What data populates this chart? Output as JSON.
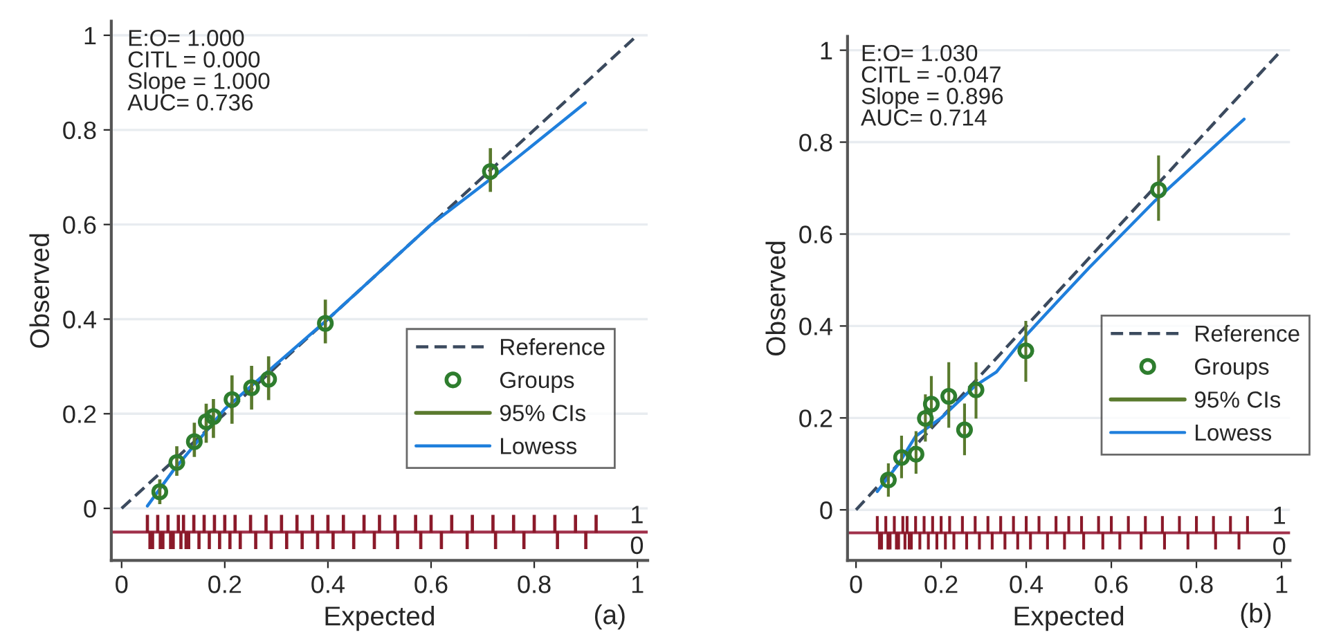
{
  "chart_data": [
    {
      "type": "scatter",
      "xlabel": "Expected",
      "ylabel": "Observed",
      "xlim": [
        -0.02,
        1.02
      ],
      "ylim": [
        -0.11,
        1.03
      ],
      "xticks": [
        0,
        0.2,
        0.4,
        0.6,
        0.8,
        1
      ],
      "yticks": [
        0,
        0.2,
        0.4,
        0.6,
        0.8,
        1
      ],
      "grid": "y",
      "legend": "lower right",
      "annotations": [
        "E:O= 1.000\nCITL = 0.000\nSlope = 1.000\nAUC= 0.736",
        "(a)",
        "1",
        "0"
      ],
      "ref_lines": [
        {
          "axis": "y",
          "value": -0.05,
          "color": "#a0304a"
        }
      ],
      "series": [
        {
          "name": "Reference",
          "type": "line",
          "line_style": "dashed",
          "color": "#3b4a5e",
          "x": [
            0,
            1
          ],
          "values": [
            0,
            1
          ]
        },
        {
          "name": "Groups",
          "marker": "circle",
          "color": "#2e7d2e",
          "x": [
            0.074,
            0.107,
            0.141,
            0.164,
            0.178,
            0.214,
            0.252,
            0.285,
            0.395,
            0.715
          ],
          "values": [
            0.035,
            0.097,
            0.141,
            0.183,
            0.194,
            0.23,
            0.255,
            0.273,
            0.391,
            0.712
          ]
        },
        {
          "name": "95% CIs",
          "type": "bar",
          "color": "#5a7a2e",
          "x": [
            0.074,
            0.107,
            0.141,
            0.164,
            0.178,
            0.214,
            0.252,
            0.285,
            0.395,
            0.715
          ],
          "base": [
            0.01,
            0.07,
            0.11,
            0.14,
            0.15,
            0.18,
            0.21,
            0.23,
            0.35,
            0.67
          ],
          "values": [
            0.05,
            0.06,
            0.07,
            0.08,
            0.08,
            0.1,
            0.09,
            0.09,
            0.09,
            0.09
          ]
        },
        {
          "name": "Lowess",
          "type": "line",
          "line_style": "solid",
          "color": "#1f7fdc",
          "x": [
            0.05,
            0.1,
            0.2,
            0.4,
            0.6,
            0.72,
            0.899
          ],
          "values": [
            0.005,
            0.08,
            0.21,
            0.4,
            0.6,
            0.7,
            0.857
          ]
        },
        {
          "type": "bar",
          "color": "#8b1a2a",
          "x": [
            0.05,
            0.055,
            0.06,
            0.07,
            0.075,
            0.08,
            0.09,
            0.095,
            0.1,
            0.11,
            0.115,
            0.12,
            0.125,
            0.13,
            0.14,
            0.15,
            0.16,
            0.17,
            0.18,
            0.19,
            0.2,
            0.21,
            0.22,
            0.23,
            0.25,
            0.26,
            0.28,
            0.29,
            0.31,
            0.32,
            0.34,
            0.35,
            0.37,
            0.38,
            0.4,
            0.41,
            0.43,
            0.45,
            0.47,
            0.49,
            0.5,
            0.53,
            0.535,
            0.57,
            0.58,
            0.6,
            0.62,
            0.64,
            0.67,
            0.68,
            0.72,
            0.725,
            0.76,
            0.78,
            0.8,
            0.84,
            0.845,
            0.88,
            0.9,
            0.92
          ],
          "base": [
            -0.05,
            -0.05,
            -0.05,
            -0.05,
            -0.05,
            -0.05,
            -0.05,
            -0.05,
            -0.05,
            -0.05,
            -0.05,
            -0.05,
            -0.05,
            -0.05,
            -0.05,
            -0.05,
            -0.05,
            -0.05,
            -0.05,
            -0.05,
            -0.05,
            -0.05,
            -0.05,
            -0.05,
            -0.05,
            -0.05,
            -0.05,
            -0.05,
            -0.05,
            -0.05,
            -0.05,
            -0.05,
            -0.05,
            -0.05,
            -0.05,
            -0.05,
            -0.05,
            -0.05,
            -0.05,
            -0.05,
            -0.05,
            -0.05,
            -0.05,
            -0.05,
            -0.05,
            -0.05,
            -0.05,
            -0.05,
            -0.05,
            -0.05,
            -0.05,
            -0.05,
            -0.05,
            -0.05,
            -0.05,
            -0.05,
            -0.05,
            -0.05,
            -0.05,
            -0.05
          ],
          "values": [
            0.035,
            -0.035,
            -0.035,
            0.035,
            -0.035,
            -0.035,
            0.035,
            -0.035,
            -0.035,
            0.035,
            -0.035,
            0.035,
            -0.035,
            -0.035,
            0.035,
            -0.035,
            0.035,
            -0.035,
            0.035,
            -0.035,
            0.035,
            -0.035,
            0.035,
            -0.035,
            0.035,
            -0.035,
            0.035,
            -0.035,
            0.035,
            -0.035,
            0.035,
            -0.035,
            0.035,
            -0.035,
            0.035,
            -0.035,
            0.035,
            -0.035,
            0.035,
            -0.035,
            0.035,
            0.035,
            -0.035,
            0.035,
            -0.035,
            0.035,
            -0.035,
            0.035,
            -0.035,
            0.035,
            0.035,
            -0.035,
            0.035,
            -0.035,
            0.035,
            0.035,
            -0.035,
            0.035,
            -0.035,
            0.035
          ]
        }
      ]
    },
    {
      "type": "scatter",
      "xlabel": "Expected",
      "ylabel": "Observed",
      "xlim": [
        -0.02,
        1.02
      ],
      "ylim": [
        -0.11,
        1.03
      ],
      "xticks": [
        0,
        0.2,
        0.4,
        0.6,
        0.8,
        1
      ],
      "yticks": [
        0,
        0.2,
        0.4,
        0.6,
        0.8,
        1
      ],
      "grid": "y",
      "legend": "right",
      "annotations": [
        "E:O= 1.030\nCITL = -0.047\nSlope = 0.896\nAUC= 0.714",
        "(b)",
        "1",
        "0"
      ],
      "ref_lines": [
        {
          "axis": "y",
          "value": -0.05,
          "color": "#a0304a"
        }
      ],
      "series": [
        {
          "name": "Reference",
          "type": "line",
          "line_style": "dashed",
          "color": "#3b4a5e",
          "x": [
            0,
            1
          ],
          "values": [
            0,
            1
          ]
        },
        {
          "name": "Groups",
          "marker": "circle",
          "color": "#2e7d2e",
          "x": [
            0.076,
            0.107,
            0.141,
            0.163,
            0.177,
            0.218,
            0.255,
            0.282,
            0.399,
            0.711
          ],
          "values": [
            0.065,
            0.114,
            0.121,
            0.199,
            0.23,
            0.247,
            0.174,
            0.261,
            0.346,
            0.696
          ]
        },
        {
          "name": "95% CIs",
          "type": "bar",
          "color": "#5a7a2e",
          "x": [
            0.076,
            0.107,
            0.141,
            0.163,
            0.177,
            0.218,
            0.255,
            0.282,
            0.399,
            0.711
          ],
          "base": [
            0.03,
            0.07,
            0.08,
            0.15,
            0.18,
            0.18,
            0.12,
            0.2,
            0.28,
            0.63
          ],
          "values": [
            0.07,
            0.09,
            0.09,
            0.1,
            0.11,
            0.14,
            0.11,
            0.12,
            0.13,
            0.14
          ]
        },
        {
          "name": "Lowess",
          "type": "line",
          "line_style": "solid",
          "color": "#1f7fdc",
          "x": [
            0.05,
            0.1,
            0.14,
            0.17,
            0.2,
            0.28,
            0.33,
            0.4,
            0.45,
            0.548,
            0.7,
            0.912
          ],
          "values": [
            0.04,
            0.1,
            0.16,
            0.18,
            0.2,
            0.27,
            0.3,
            0.38,
            0.43,
            0.527,
            0.67,
            0.85
          ]
        },
        {
          "type": "bar",
          "color": "#8b1a2a",
          "x": [
            0.05,
            0.055,
            0.06,
            0.07,
            0.075,
            0.08,
            0.09,
            0.095,
            0.1,
            0.11,
            0.115,
            0.12,
            0.125,
            0.13,
            0.14,
            0.15,
            0.16,
            0.17,
            0.18,
            0.19,
            0.2,
            0.21,
            0.22,
            0.23,
            0.25,
            0.26,
            0.28,
            0.29,
            0.31,
            0.32,
            0.34,
            0.35,
            0.37,
            0.38,
            0.4,
            0.41,
            0.43,
            0.45,
            0.47,
            0.49,
            0.5,
            0.53,
            0.535,
            0.57,
            0.58,
            0.6,
            0.62,
            0.64,
            0.67,
            0.68,
            0.72,
            0.725,
            0.76,
            0.78,
            0.8,
            0.84,
            0.845,
            0.88,
            0.9,
            0.92
          ],
          "base": [
            -0.05,
            -0.05,
            -0.05,
            -0.05,
            -0.05,
            -0.05,
            -0.05,
            -0.05,
            -0.05,
            -0.05,
            -0.05,
            -0.05,
            -0.05,
            -0.05,
            -0.05,
            -0.05,
            -0.05,
            -0.05,
            -0.05,
            -0.05,
            -0.05,
            -0.05,
            -0.05,
            -0.05,
            -0.05,
            -0.05,
            -0.05,
            -0.05,
            -0.05,
            -0.05,
            -0.05,
            -0.05,
            -0.05,
            -0.05,
            -0.05,
            -0.05,
            -0.05,
            -0.05,
            -0.05,
            -0.05,
            -0.05,
            -0.05,
            -0.05,
            -0.05,
            -0.05,
            -0.05,
            -0.05,
            -0.05,
            -0.05,
            -0.05,
            -0.05,
            -0.05,
            -0.05,
            -0.05,
            -0.05,
            -0.05,
            -0.05,
            -0.05,
            -0.05,
            -0.05
          ],
          "values": [
            0.035,
            -0.035,
            -0.035,
            0.035,
            -0.035,
            -0.035,
            0.035,
            -0.035,
            -0.035,
            0.035,
            -0.035,
            0.035,
            -0.035,
            -0.035,
            0.035,
            -0.035,
            0.035,
            -0.035,
            0.035,
            -0.035,
            0.035,
            -0.035,
            0.035,
            -0.035,
            0.035,
            -0.035,
            0.035,
            -0.035,
            0.035,
            -0.035,
            0.035,
            -0.035,
            0.035,
            -0.035,
            0.035,
            -0.035,
            0.035,
            -0.035,
            0.035,
            -0.035,
            0.035,
            0.035,
            -0.035,
            0.035,
            -0.035,
            0.035,
            -0.035,
            0.035,
            -0.035,
            0.035,
            0.035,
            -0.035,
            0.035,
            -0.035,
            0.035,
            0.035,
            -0.035,
            0.035,
            -0.035,
            0.035
          ]
        }
      ]
    }
  ]
}
